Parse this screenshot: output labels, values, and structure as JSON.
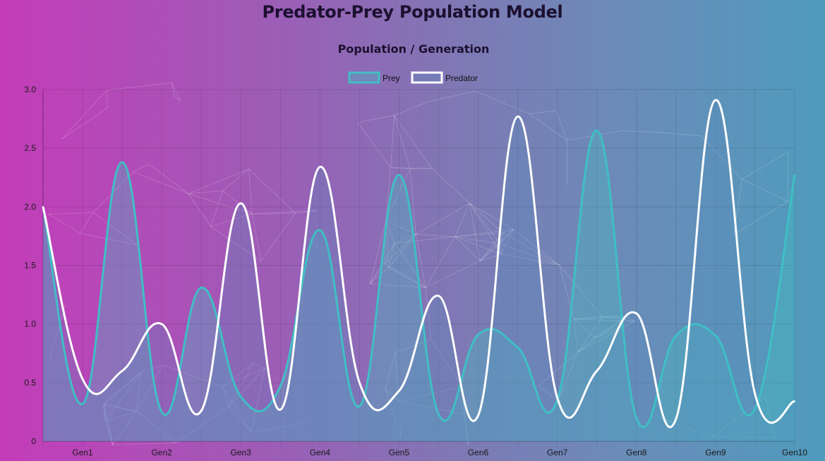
{
  "page": {
    "title": "Predator-Prey Population Model"
  },
  "chart_data": {
    "type": "line",
    "title": "Population / Generation",
    "categories": [
      "",
      "Gen1",
      "",
      "Gen2",
      "",
      "Gen3",
      "",
      "Gen4",
      "",
      "Gen5",
      "",
      "Gen6",
      "",
      "Gen7",
      "",
      "Gen8",
      "",
      "Gen9",
      "",
      "Gen10"
    ],
    "ylim": [
      0,
      3.0
    ],
    "yticks": [
      "0",
      "0.5",
      "1.0",
      "1.5",
      "2.0",
      "2.5",
      "3.0"
    ],
    "grid": true,
    "legend": "top-center",
    "series": [
      {
        "name": "Prey",
        "color": "#3fbfc4",
        "fill": "rgba(70,190,195,0.35)",
        "values": [
          2.0,
          0.32,
          2.38,
          0.25,
          1.31,
          0.38,
          0.47,
          1.8,
          0.3,
          2.27,
          0.23,
          0.91,
          0.8,
          0.35,
          2.65,
          0.2,
          0.9,
          0.9,
          0.28,
          2.27
        ]
      },
      {
        "name": "Predator",
        "color": "#ffffff",
        "fill": "rgba(90,140,190,0.30)",
        "values": [
          2.0,
          0.53,
          0.6,
          1.0,
          0.26,
          2.03,
          0.27,
          2.34,
          0.5,
          0.43,
          1.24,
          0.22,
          2.77,
          0.37,
          0.6,
          1.09,
          0.19,
          2.91,
          0.4,
          0.34
        ]
      }
    ]
  }
}
